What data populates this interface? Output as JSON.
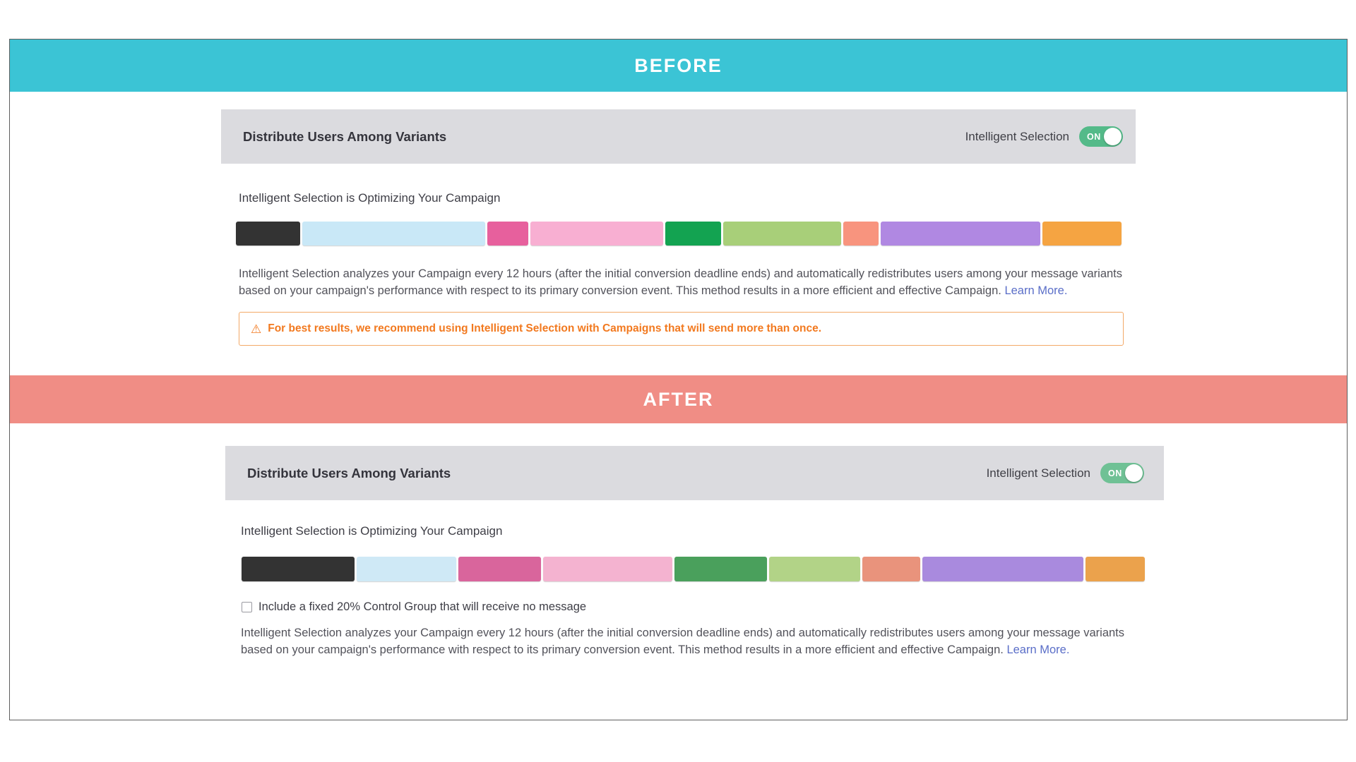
{
  "before": {
    "banner": "BEFORE",
    "banner_color": "#3bc4d5",
    "header": {
      "title": "Distribute Users Among Variants",
      "toggle_label": "Intelligent Selection",
      "toggle_state": "ON",
      "toggle_color": "#54ba89"
    },
    "optimizing_label": "Intelligent Selection is Optimizing Your Campaign",
    "distribution_segments": [
      {
        "color": "#333333",
        "width": 7.2
      },
      {
        "color": "#c9e8f7",
        "width": 20.6
      },
      {
        "color": "#e7609d",
        "width": 4.6
      },
      {
        "color": "#f8afd2",
        "width": 14.9
      },
      {
        "color": "#13a351",
        "width": 6.3
      },
      {
        "color": "#a8cf79",
        "width": 13.2
      },
      {
        "color": "#f8947e",
        "width": 4.0
      },
      {
        "color": "#b088e2",
        "width": 17.9
      },
      {
        "color": "#f5a442",
        "width": 8.9
      }
    ],
    "description": "Intelligent Selection analyzes your Campaign every 12 hours (after the initial conversion deadline ends) and automatically redistributes users among your message variants based on your campaign's performance with respect to its primary conversion event. This method results in a more efficient and effective Campaign.",
    "learn_more": "Learn More.",
    "warning": {
      "icon": "warning-triangle",
      "text": "For best results, we recommend using Intelligent Selection with Campaigns that will send more than once.",
      "color": "#f2791f"
    }
  },
  "after": {
    "banner": "AFTER",
    "banner_color": "#f08d85",
    "header": {
      "title": "Distribute Users Among Variants",
      "toggle_label": "Intelligent Selection",
      "toggle_state": "ON",
      "toggle_color": "#6fc195"
    },
    "optimizing_label": "Intelligent Selection is Optimizing Your Campaign",
    "distribution_segments": [
      {
        "color": "#333333",
        "width": 12.7
      },
      {
        "color": "#cfe9f6",
        "width": 11.2
      },
      {
        "color": "#d9659c",
        "width": 9.3
      },
      {
        "color": "#f4b3d0",
        "width": 14.6
      },
      {
        "color": "#4aa05c",
        "width": 10.4
      },
      {
        "color": "#b2d387",
        "width": 10.3
      },
      {
        "color": "#e9937c",
        "width": 6.5
      },
      {
        "color": "#a98ade",
        "width": 18.1
      },
      {
        "color": "#eba24c",
        "width": 6.7
      }
    ],
    "control_group_checkbox": {
      "label": "Include a fixed 20% Control Group that will receive no message",
      "checked": false
    },
    "description": "Intelligent Selection analyzes your Campaign every 12 hours (after the initial conversion deadline ends) and automatically redistributes users among your message variants based on your campaign's performance with respect to its primary conversion event. This method results in a more efficient and effective Campaign.",
    "learn_more": "Learn More."
  },
  "icons": {
    "warning": "⚠"
  }
}
